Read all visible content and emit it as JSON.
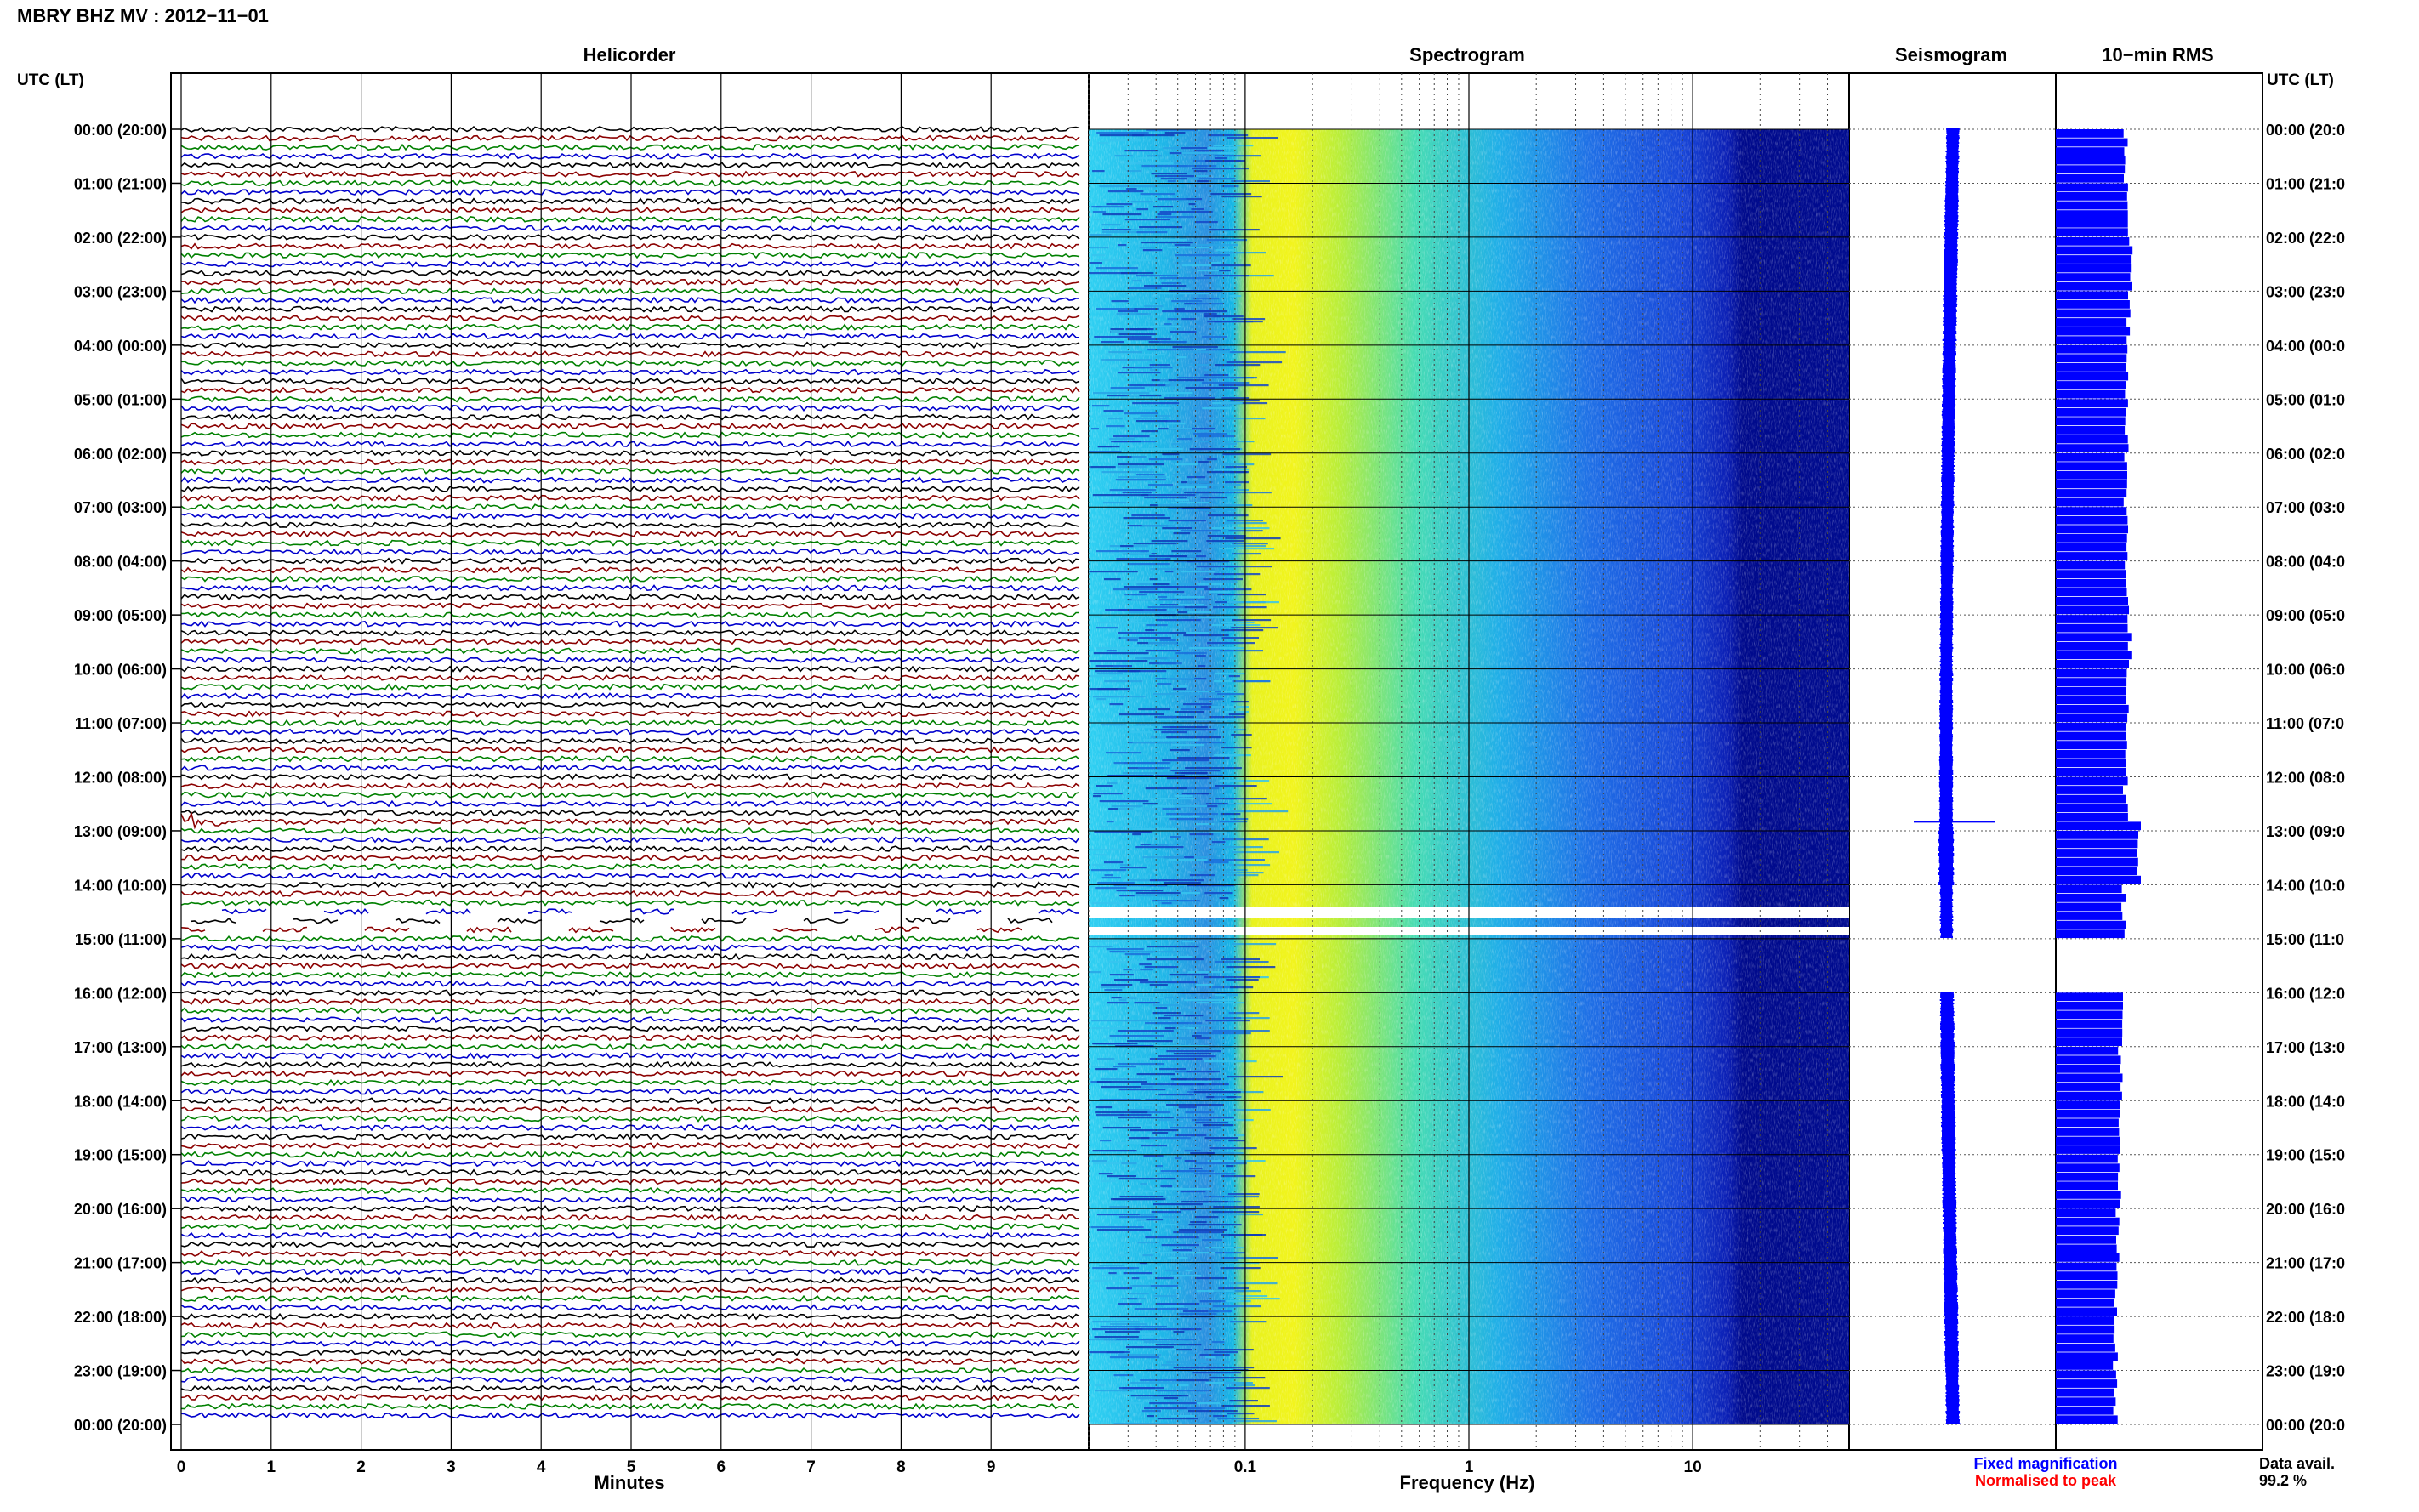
{
  "header": {
    "station_title": "MBRY BHZ MV : 2012−11−01"
  },
  "panels": {
    "helicorder": "Helicorder",
    "spectrogram": "Spectrogram",
    "seismogram": "Seismogram",
    "rms": "10−min RMS"
  },
  "axes": {
    "left_time_title": "UTC (LT)",
    "right_time_title": "UTC (LT)",
    "minutes_label": "Minutes",
    "frequency_label": "Frequency (Hz)"
  },
  "legend": {
    "fixed": "Fixed magnification",
    "normalised": "Normalised to peak",
    "fixed_color": "#0000ff",
    "normalised_color": "#ff0000"
  },
  "availability": {
    "label": "Data avail.",
    "value": "99.2 %"
  },
  "colors": {
    "trace_cycle": [
      "#000000",
      "#8b0000",
      "#008000",
      "#0000cd"
    ],
    "seismogram": "#0000ff",
    "rms_bars": "#0000ff"
  },
  "chart_data": {
    "type": "heatmap",
    "title": "MBRY BHZ MV : 2012−11−01",
    "time_ticks": [
      "00:00 (20:00)",
      "01:00 (21:00)",
      "02:00 (22:00)",
      "03:00 (23:00)",
      "04:00 (00:00)",
      "05:00 (01:00)",
      "06:00 (02:00)",
      "07:00 (03:00)",
      "08:00 (04:00)",
      "09:00 (05:00)",
      "10:00 (06:00)",
      "11:00 (07:00)",
      "12:00 (08:00)",
      "13:00 (09:00)",
      "14:00 (10:00)",
      "15:00 (11:00)",
      "16:00 (12:00)",
      "17:00 (13:00)",
      "18:00 (14:00)",
      "19:00 (15:00)",
      "20:00 (16:00)",
      "21:00 (17:00)",
      "22:00 (18:00)",
      "23:00 (19:00)",
      "00:00 (20:00)"
    ],
    "right_time_ticks": [
      "00:00 (20:0",
      "01:00 (21:0",
      "02:00 (22:0",
      "03:00 (23:0",
      "04:00 (00:0",
      "05:00 (01:0",
      "06:00 (02:0",
      "07:00 (03:0",
      "08:00 (04:0",
      "09:00 (05:0",
      "10:00 (06:0",
      "11:00 (07:0",
      "12:00 (08:0",
      "13:00 (09:0",
      "14:00 (10:0",
      "15:00 (11:0",
      "16:00 (12:0",
      "17:00 (13:0",
      "18:00 (14:0",
      "19:00 (15:0",
      "20:00 (16:0",
      "21:00 (17:0",
      "22:00 (18:0",
      "23:00 (19:0",
      "00:00 (20:0"
    ],
    "minute_ticks": [
      "0",
      "1",
      "2",
      "3",
      "4",
      "5",
      "6",
      "7",
      "8",
      "9"
    ],
    "minutes_range": [
      0,
      10
    ],
    "frequency_ticks": [
      "0.1",
      "1",
      "10"
    ],
    "frequency_range_hz": [
      0.02,
      50
    ],
    "frequency_scale": "log",
    "traces_per_hour": 6,
    "hours": 24,
    "event_time": "12:50",
    "gap_hours": [
      14.5,
      15.0
    ],
    "seismogram_envelope_relative": [
      0.55,
      0.6,
      0.62,
      0.6,
      0.58,
      0.55,
      0.52,
      0.5,
      0.5,
      0.52,
      0.55,
      0.58,
      0.6,
      0.75,
      0.5,
      0.0,
      0.6,
      0.62,
      0.65,
      0.6,
      0.58,
      0.62,
      0.6,
      0.58
    ],
    "rms_relative": [
      0.82,
      0.86,
      0.88,
      0.86,
      0.84,
      0.84,
      0.82,
      0.84,
      0.84,
      0.86,
      0.85,
      0.84,
      0.82,
      0.98,
      0.8,
      0.0,
      0.78,
      0.76,
      0.74,
      0.74,
      0.72,
      0.72,
      0.7,
      0.7
    ]
  }
}
